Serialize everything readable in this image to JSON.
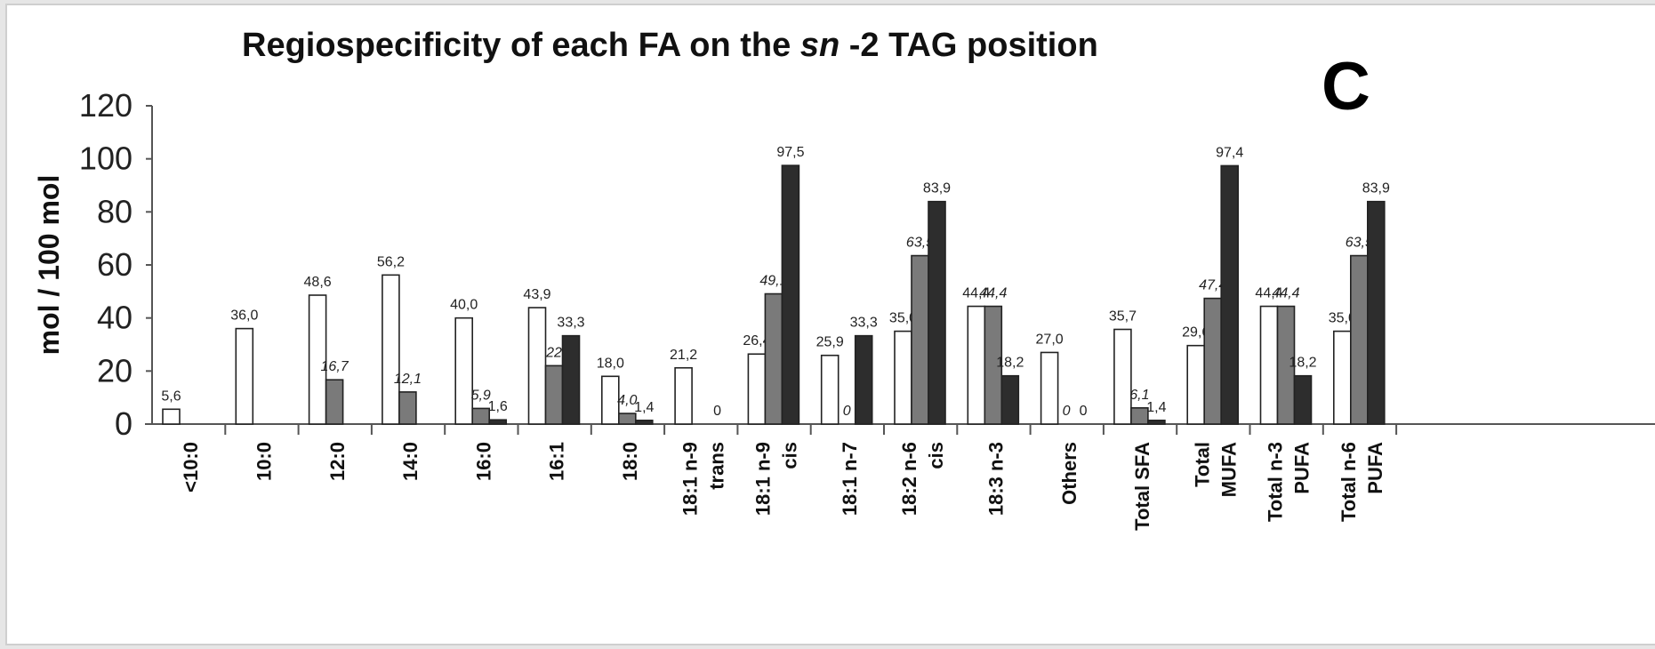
{
  "chart_data": {
    "type": "bar",
    "title_parts": [
      "Regiospecificity of each FA on the ",
      "sn",
      " -2 TAG position"
    ],
    "panel_label": "C",
    "ylabel": "mol / 100 mol",
    "ylim": [
      0,
      120
    ],
    "yticks": [
      "0",
      "20",
      "40",
      "60",
      "80",
      "100",
      "120"
    ],
    "categories": [
      [
        "<10:0"
      ],
      [
        "10:0"
      ],
      [
        "12:0"
      ],
      [
        "14:0"
      ],
      [
        "16:0"
      ],
      [
        "16:1"
      ],
      [
        "18:0"
      ],
      [
        "18:1 n-9",
        "trans"
      ],
      [
        "18:1 n-9",
        "cis"
      ],
      [
        "18:1 n-7"
      ],
      [
        "18:2 n-6",
        "cis"
      ],
      [
        "18:3 n-3"
      ],
      [
        "Others"
      ],
      [
        "Total SFA"
      ],
      [
        "Total",
        "MUFA"
      ],
      [
        "Total n-3",
        "PUFA"
      ],
      [
        "Total n-6",
        "PUFA"
      ]
    ],
    "series": [
      {
        "color": "#ffffff",
        "values": [
          5.6,
          36.0,
          48.6,
          56.2,
          40.0,
          43.9,
          18.0,
          21.2,
          26.4,
          25.9,
          35.0,
          44.4,
          27.0,
          35.7,
          29.6,
          44.4,
          35.0
        ]
      },
      {
        "color": "#7a7a7a",
        "values": [
          null,
          null,
          16.7,
          12.1,
          5.9,
          22,
          4.0,
          null,
          49.1,
          0,
          63.5,
          44.4,
          0,
          6.1,
          47.4,
          44.4,
          63.5
        ]
      },
      {
        "color": "#2d2d2d",
        "values": [
          null,
          null,
          null,
          null,
          1.6,
          33.3,
          1.4,
          0,
          97.5,
          33.3,
          83.9,
          18.2,
          0,
          1.4,
          97.4,
          18.2,
          83.9
        ]
      }
    ],
    "data_labels": [
      [
        "5,6",
        "36,0",
        "48,6",
        "56,2",
        "40,0",
        "43,9",
        "18,0",
        "21,2",
        "26,4",
        "25,9",
        "35,0",
        "44,4",
        "27,0",
        "35,7",
        "29,6",
        "44,4",
        "35,0"
      ],
      [
        "",
        "",
        "16,7",
        "12,1",
        "5,9",
        "22",
        "4,0",
        "",
        "49,1",
        "0",
        "63,5",
        "44,4",
        "0",
        "6,1",
        "47,4",
        "44,4",
        "63,5"
      ],
      [
        "",
        "",
        "",
        "",
        "1,6",
        "33,3",
        "1,4",
        "0",
        "97,5",
        "33,3",
        "83,9",
        "18,2",
        "0",
        "1,4",
        "97,4",
        "18,2",
        "83,9"
      ]
    ],
    "legend": "none",
    "grid": false
  }
}
